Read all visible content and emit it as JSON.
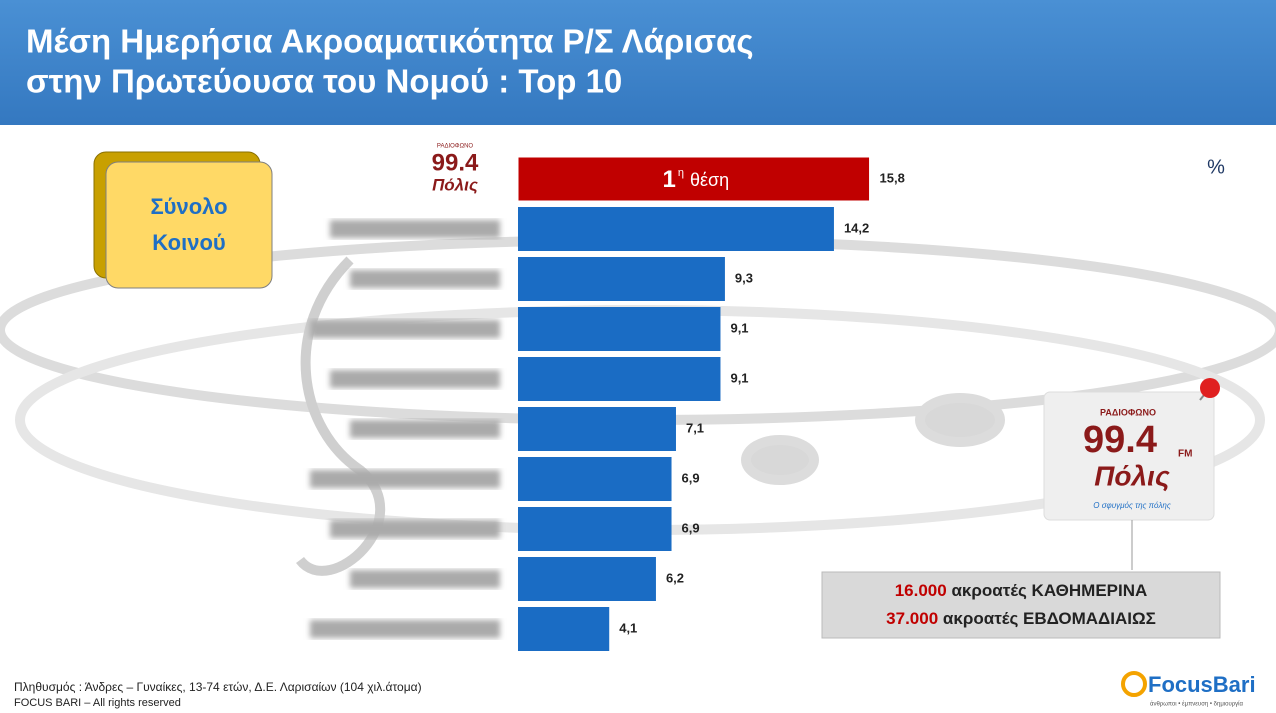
{
  "chart_data": {
    "type": "barh",
    "title": [
      "Μέση Ημερήσια Ακροαματικότητα Ρ/Σ Λάρισας",
      "στην Πρωτεύουσα του Νομού : Top 10"
    ],
    "unit_label": "%",
    "segment_box": [
      "Σύνολο",
      "Κοινού"
    ],
    "categories": [
      null,
      null,
      null,
      null,
      null,
      null,
      null,
      null,
      null,
      null
    ],
    "values": [
      15.8,
      14.2,
      9.3,
      9.1,
      9.1,
      7.1,
      6.9,
      6.9,
      6.2,
      4.1
    ],
    "value_labels": [
      "15,8",
      "14,2",
      "9,3",
      "9,1",
      "9,1",
      "7,1",
      "6,9",
      "6,9",
      "6,2",
      "4,1"
    ],
    "colors": [
      "#c00000",
      "#1a6cc4",
      "#1a6cc4",
      "#1a6cc4",
      "#1a6cc4",
      "#1a6cc4",
      "#1a6cc4",
      "#1a6cc4",
      "#1a6cc4",
      "#1a6cc4"
    ],
    "xlim": [
      0,
      16
    ],
    "annotation": {
      "rank": "1",
      "suffix": "η",
      "text": "θέση"
    },
    "logo": {
      "top": "ΡΑΔΙΟΦΩΝΟ",
      "freq": "99.4",
      "fm": "FM",
      "name": "Πόλις",
      "tagline": "Ο σφυγμός της πόλης"
    },
    "callout": [
      {
        "number": "16.000",
        "text": "ακροατές ΚΑΘΗΜΕΡΙΝΑ"
      },
      {
        "number": "37.000",
        "text": "ακροατές ΕΒΔΟΜΑΔΙΑΙΩΣ"
      }
    ],
    "footer": [
      "Πληθυσμός : Άνδρες – Γυναίκες, 13-74 ετών, Δ.Ε. Λαρισαίων (104 χιλ.άτομα)",
      "FOCUS BARI – All rights reserved"
    ],
    "brand": {
      "name": "FocusBari",
      "tagline": "άνθρωποι • έμπνευση • δημιουργία"
    }
  }
}
